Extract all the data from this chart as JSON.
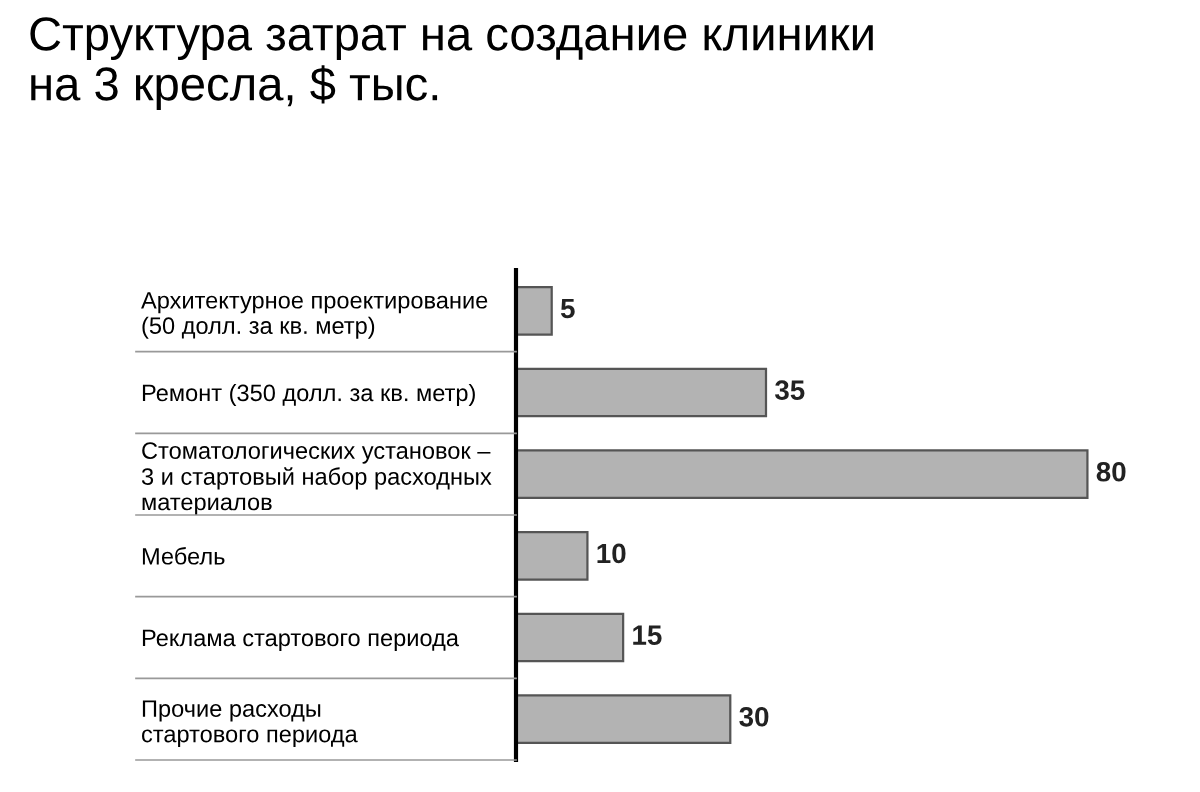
{
  "chart_data": {
    "type": "bar",
    "orientation": "horizontal",
    "title": "Структура затрат на создание клиники\nна 3 кресла, $ тыс.",
    "categories": [
      "Архитектурное проектирование\n(50 долл. за кв. метр)",
      "Ремонт (350 долл. за кв. метр)",
      "Стоматологических установок –\n3 и стартовый набор расходных\nматериалов",
      "Мебель",
      "Реклама стартового периода",
      "Прочие расходы\nстартового периода"
    ],
    "values": [
      5,
      35,
      80,
      10,
      15,
      30
    ],
    "color": "#b3b3b3",
    "data_labels": true,
    "grid": false,
    "legend": false
  }
}
